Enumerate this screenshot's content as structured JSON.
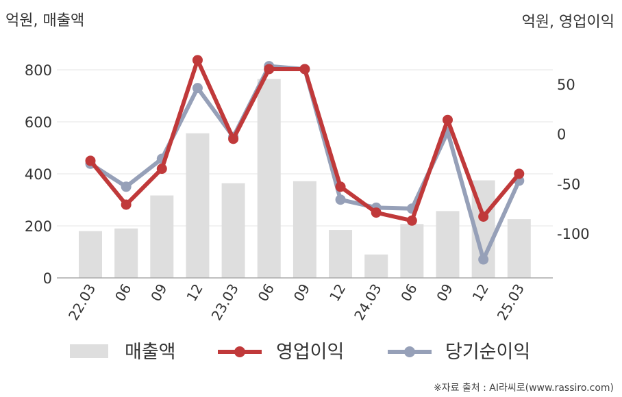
{
  "units": {
    "left": "억원, 매출액",
    "right": "억원, 영업이익"
  },
  "source": "※자료 출처 : AI라씨로(www.rassiro.com)",
  "colors": {
    "revenue": "#dedede",
    "operating_profit": "#c0393a",
    "net_income": "#96a0b8",
    "grid": "#e6e6e6",
    "axis": "#aaaaaa"
  },
  "chart_data": {
    "type": "bar+line",
    "categories": [
      "22.03",
      "06",
      "09",
      "12",
      "23.03",
      "06",
      "09",
      "12",
      "24.03",
      "06",
      "09",
      "12",
      "25.03"
    ],
    "left_axis": {
      "ylim": [
        0,
        800
      ],
      "ticks": [
        0,
        200,
        400,
        600,
        800
      ]
    },
    "right_axis": {
      "ylim": [
        -150,
        75
      ],
      "ticks": [
        -100,
        -50,
        0,
        50
      ]
    },
    "series": [
      {
        "name": "매출액",
        "type": "bar",
        "axis": "left",
        "values": [
          180,
          190,
          317,
          556,
          364,
          765,
          372,
          184,
          90,
          207,
          257,
          375,
          226
        ]
      },
      {
        "name": "영업이익",
        "type": "line",
        "axis": "right",
        "values": [
          -27,
          -71,
          -35,
          74,
          -5,
          65,
          65,
          -53,
          -79,
          -87,
          14,
          -83,
          -40
        ]
      },
      {
        "name": "당기순이익",
        "type": "line",
        "axis": "right",
        "values": [
          -30,
          -53,
          -25,
          46,
          -3,
          68,
          65,
          -66,
          -74,
          -75,
          2,
          -126,
          -47
        ]
      }
    ]
  }
}
